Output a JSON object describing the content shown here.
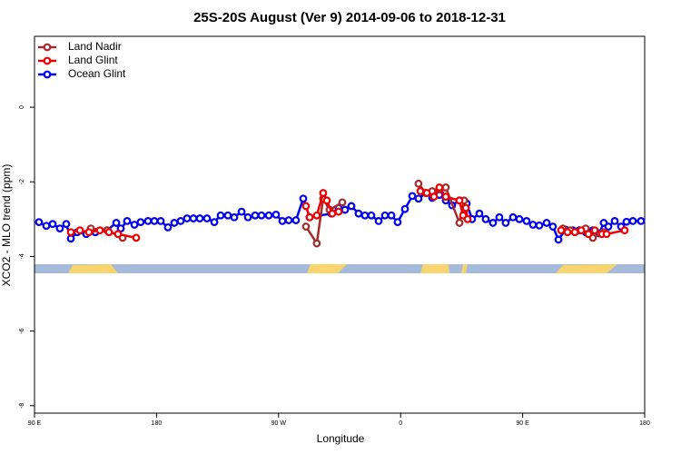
{
  "chart_data": {
    "type": "line",
    "title": "25S-20S August (Ver 9)   2014-09-06 to 2018-12-31",
    "x_label": "Longitude",
    "y_label": "XCO2 - MLO trend (ppm)",
    "xlim": [
      90,
      540
    ],
    "xticks": [
      {
        "value": 90,
        "label": "90 E"
      },
      180,
      {
        "value": 270,
        "label": "90 W"
      },
      {
        "value": 360,
        "label": "0"
      },
      {
        "value": 450,
        "label": "90 E"
      },
      {
        "value": 540,
        "label": "180"
      }
    ],
    "ylim": [
      -8.2,
      1.9
    ],
    "yticks": [
      0,
      -2,
      -4,
      -6,
      -8
    ],
    "legend": "top-left",
    "series": [
      {
        "name": "Land Nadir",
        "color": "#a52a2a",
        "x": [
          131.5,
          143.6,
          155,
          null,
          290.2,
          298.2,
          302.9,
          307.6,
          317,
          null,
          373.2,
          378.6,
          383.3,
          388.6,
          393.3,
          403.4,
          406.8,
          null,
          479.7,
          485.1,
          496.5,
          501.8,
          509.8
        ],
        "values": [
          -3.25,
          -3.3,
          -3.5,
          null,
          -3.2,
          -3.65,
          -2.45,
          -2.75,
          -2.55,
          null,
          -2.05,
          -2.3,
          -2.25,
          -2.2,
          -2.15,
          -3.1,
          -2.5,
          null,
          -3.25,
          -3.3,
          -3.25,
          -3.5,
          -3.35
        ]
      },
      {
        "name": "Land Glint",
        "color": "#ee0000",
        "x": [
          116.8,
          123.5,
          130.2,
          138.2,
          144.9,
          151.6,
          165,
          null,
          290.2,
          292.9,
          298.2,
          302.9,
          305.6,
          309.6,
          314.3,
          null,
          374.6,
          379.3,
          384.6,
          388.6,
          393.3,
          403.4,
          406.1,
          408.1,
          409.4,
          null,
          478.4,
          483.1,
          488.5,
          493.2,
          498.5,
          503.2,
          508.5,
          511.9,
          525.2
        ],
        "values": [
          -3.35,
          -3.3,
          -3.35,
          -3.3,
          -3.35,
          -3.4,
          -3.5,
          null,
          -2.65,
          -2.95,
          -2.9,
          -2.3,
          -2.5,
          -2.85,
          -2.8,
          null,
          -2.25,
          -2.3,
          -2.4,
          -2.15,
          -2.4,
          -2.5,
          -2.9,
          -2.7,
          -3.0,
          null,
          -3.3,
          -3.35,
          -3.35,
          -3.3,
          -3.4,
          -3.3,
          -3.4,
          -3.4,
          -3.3
        ]
      },
      {
        "name": "Ocean Glint",
        "color": "#0000ee",
        "x": [
          93.3,
          98.7,
          103.4,
          108.7,
          113.4,
          116.8,
          121.5,
          128.2,
          134.9,
          143.6,
          150.3,
          153.6,
          158.3,
          163.7,
          168.3,
          173.7,
          178.4,
          183.1,
          188.4,
          193.1,
          197.8,
          202.5,
          207.2,
          211.9,
          217.2,
          222.6,
          227.3,
          232.6,
          237.3,
          242.7,
          247.4,
          252.7,
          257.4,
          262.8,
          268.1,
          272.8,
          277.5,
          282.8,
          288.2,
          292.9,
          308.9,
          314.3,
          319,
          323.7,
          329,
          333.7,
          338.4,
          343.8,
          348.5,
          353.2,
          357.8,
          363.2,
          368.6,
          373.2,
          378.6,
          383.3,
          388.6,
          393.3,
          398,
          403.4,
          408.7,
          412.7,
          418.1,
          422.8,
          428.1,
          432.8,
          437.5,
          442.9,
          447.6,
          452.9,
          457.6,
          462.3,
          467.7,
          472.3,
          476.4,
          481.7,
          487.1,
          491.8,
          496.5,
          501.8,
          506.5,
          509.8,
          513.2,
          517.9,
          522.6,
          526.6,
          531.3,
          537.3
        ],
        "values": [
          -3.08,
          -3.18,
          -3.13,
          -3.25,
          -3.13,
          -3.52,
          -3.35,
          -3.4,
          -3.35,
          -3.3,
          -3.1,
          -3.25,
          -3.05,
          -3.15,
          -3.08,
          -3.05,
          -3.05,
          -3.05,
          -3.22,
          -3.1,
          -3.05,
          -2.98,
          -2.98,
          -2.98,
          -2.98,
          -3.08,
          -2.9,
          -2.9,
          -2.95,
          -2.8,
          -2.95,
          -2.9,
          -2.9,
          -2.9,
          -2.88,
          -3.05,
          -3.03,
          -3.03,
          -2.45,
          -2.95,
          -2.85,
          -2.7,
          -2.75,
          -2.65,
          -2.85,
          -2.9,
          -2.9,
          -3.05,
          -2.9,
          -2.9,
          -3.08,
          -2.73,
          -2.38,
          -2.45,
          -2.3,
          -2.43,
          -2.35,
          -2.5,
          -2.63,
          -2.5,
          -2.58,
          -3.0,
          -2.85,
          -3.0,
          -3.1,
          -2.95,
          -3.1,
          -2.95,
          -3.0,
          -3.05,
          -3.15,
          -3.17,
          -3.1,
          -3.2,
          -3.55,
          -3.28,
          -3.3,
          -3.3,
          -3.35,
          -3.3,
          -3.38,
          -3.1,
          -3.2,
          -3.05,
          -3.2,
          -3.07,
          -3.05,
          -3.05
        ]
      }
    ]
  }
}
